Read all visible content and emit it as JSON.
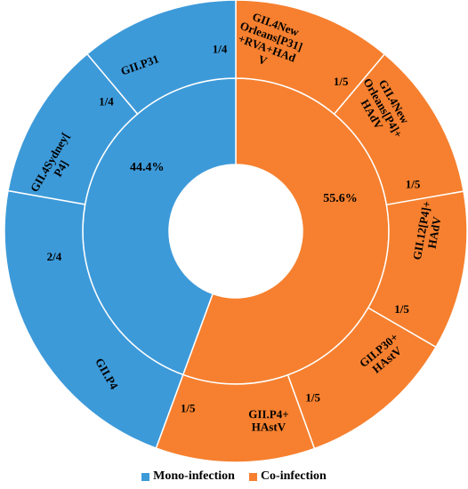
{
  "chart_data": {
    "type": "sunburst",
    "colors": {
      "mono": "#3d9ad9",
      "co": "#f6802f"
    },
    "inner": [
      {
        "group": "mono",
        "value": 44.4,
        "label": "44.4%"
      },
      {
        "group": "co",
        "value": 55.6,
        "label": "55.6%"
      }
    ],
    "outer": [
      {
        "group": "co",
        "name": "GII.4New Orleans[P31] +RVA+HAd V",
        "lines": [
          "GII.4New",
          "Orleans[P31]",
          "+RVA+HAd",
          "V"
        ],
        "value_label": "1/5",
        "value": 0.2
      },
      {
        "group": "co",
        "name": "GII.4New Orleans[P4]+ HAdV",
        "lines": [
          "GII.4New",
          "Orleans[P4]+",
          "HAdV"
        ],
        "value_label": "1/5",
        "value": 0.2
      },
      {
        "group": "co",
        "name": "GII.12[P4]+ HAdV",
        "lines": [
          "GII.12[P4]+",
          "HAdV"
        ],
        "value_label": "1/5",
        "value": 0.2
      },
      {
        "group": "co",
        "name": "GII.P30+ HAstV",
        "lines": [
          "GII.P30+",
          "HAstV"
        ],
        "value_label": "1/5",
        "value": 0.2
      },
      {
        "group": "co",
        "name": "GII.P4+ HAstV",
        "lines": [
          "GII.P4+",
          "HAstV"
        ],
        "value_label": "1/5",
        "value": 0.2
      },
      {
        "group": "mono",
        "name": "GII.P4",
        "lines": [
          "GII.P4"
        ],
        "value_label": "2/4",
        "value": 0.5
      },
      {
        "group": "mono",
        "name": "GII.4Sydney[ P4]",
        "lines": [
          "GII.4Sydney[",
          "P4]"
        ],
        "value_label": "1/4",
        "value": 0.25
      },
      {
        "group": "mono",
        "name": "GII.P31",
        "lines": [
          "GII.P31"
        ],
        "value_label": "1/4",
        "value": 0.25
      }
    ],
    "legend": [
      {
        "group": "mono",
        "label": "Mono-infection"
      },
      {
        "group": "co",
        "label": "Co-infection"
      }
    ]
  }
}
